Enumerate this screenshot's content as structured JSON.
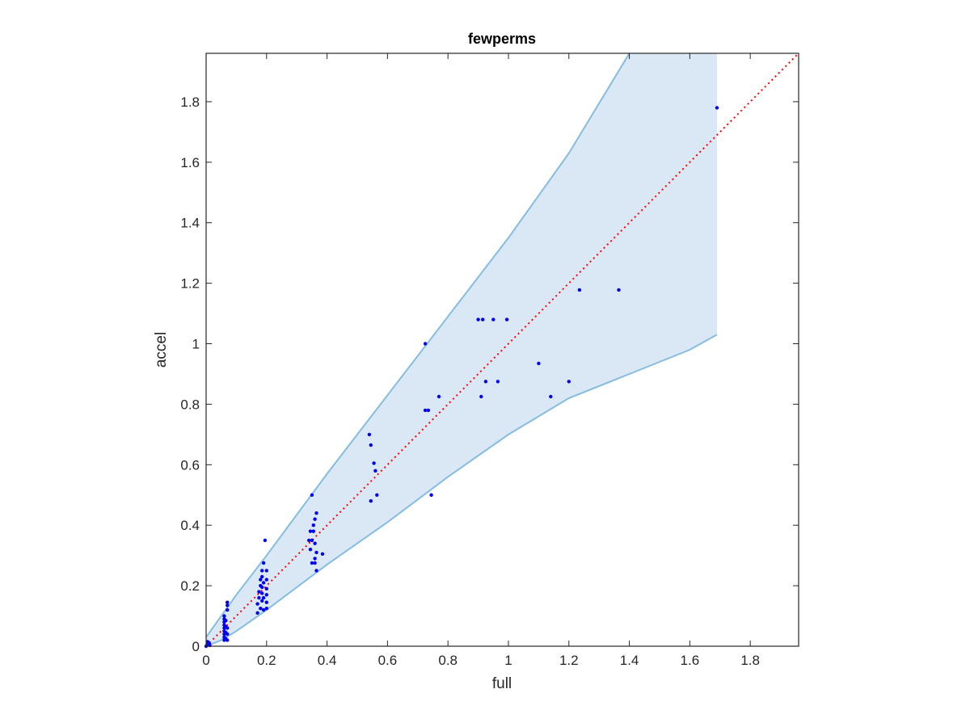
{
  "chart_data": {
    "type": "scatter",
    "title": "fewperms",
    "xlabel": "full",
    "ylabel": "accel",
    "xlim": [
      0,
      1.96
    ],
    "ylim": [
      0,
      1.96
    ],
    "xticks": [
      "0",
      "0.2",
      "0.4",
      "0.6",
      "0.8",
      "1",
      "1.2",
      "1.4",
      "1.6",
      "1.8"
    ],
    "yticks": [
      "0",
      "0.2",
      "0.4",
      "0.6",
      "0.8",
      "1",
      "1.2",
      "1.4",
      "1.6",
      "1.8"
    ],
    "grid": false,
    "colors": {
      "points": "#0000ee",
      "reference_line": "#ff0000",
      "band_fill": "#d9e8f4",
      "band_edge": "#85bce0",
      "axes": "#262626"
    },
    "band": {
      "upper": [
        [
          0,
          0.03
        ],
        [
          0.05,
          0.1
        ],
        [
          0.1,
          0.17
        ],
        [
          0.2,
          0.3
        ],
        [
          0.4,
          0.57
        ],
        [
          0.6,
          0.83
        ],
        [
          0.8,
          1.09
        ],
        [
          1.0,
          1.35
        ],
        [
          1.2,
          1.63
        ],
        [
          1.4,
          1.96
        ]
      ],
      "lower": [
        [
          0,
          0
        ],
        [
          0.05,
          0.02
        ],
        [
          0.1,
          0.05
        ],
        [
          0.2,
          0.12
        ],
        [
          0.4,
          0.27
        ],
        [
          0.6,
          0.41
        ],
        [
          0.8,
          0.56
        ],
        [
          1.0,
          0.7
        ],
        [
          1.2,
          0.82
        ],
        [
          1.4,
          0.9
        ],
        [
          1.6,
          0.98
        ],
        [
          1.69,
          1.03
        ]
      ],
      "right_edge_x": 1.69
    },
    "reference_line": [
      [
        0,
        0
      ],
      [
        1.96,
        1.96
      ]
    ],
    "points": [
      [
        0.0,
        0.0
      ],
      [
        0.005,
        0.005
      ],
      [
        0.01,
        0.01
      ],
      [
        0.005,
        0.015
      ],
      [
        0.012,
        0.003
      ],
      [
        0.008,
        0.008
      ],
      [
        0.06,
        0.02
      ],
      [
        0.06,
        0.03
      ],
      [
        0.06,
        0.04
      ],
      [
        0.06,
        0.05
      ],
      [
        0.06,
        0.06
      ],
      [
        0.06,
        0.07
      ],
      [
        0.06,
        0.08
      ],
      [
        0.06,
        0.09
      ],
      [
        0.06,
        0.1
      ],
      [
        0.065,
        0.025
      ],
      [
        0.065,
        0.045
      ],
      [
        0.065,
        0.065
      ],
      [
        0.065,
        0.085
      ],
      [
        0.07,
        0.02
      ],
      [
        0.07,
        0.04
      ],
      [
        0.07,
        0.06
      ],
      [
        0.07,
        0.12
      ],
      [
        0.07,
        0.135
      ],
      [
        0.07,
        0.145
      ],
      [
        0.17,
        0.11
      ],
      [
        0.17,
        0.14
      ],
      [
        0.175,
        0.16
      ],
      [
        0.175,
        0.18
      ],
      [
        0.18,
        0.125
      ],
      [
        0.18,
        0.2
      ],
      [
        0.18,
        0.22
      ],
      [
        0.185,
        0.15
      ],
      [
        0.185,
        0.175
      ],
      [
        0.185,
        0.195
      ],
      [
        0.185,
        0.23
      ],
      [
        0.185,
        0.25
      ],
      [
        0.19,
        0.12
      ],
      [
        0.19,
        0.16
      ],
      [
        0.19,
        0.21
      ],
      [
        0.19,
        0.275
      ],
      [
        0.195,
        0.35
      ],
      [
        0.2,
        0.125
      ],
      [
        0.2,
        0.145
      ],
      [
        0.2,
        0.17
      ],
      [
        0.2,
        0.19
      ],
      [
        0.2,
        0.22
      ],
      [
        0.2,
        0.25
      ],
      [
        0.34,
        0.35
      ],
      [
        0.345,
        0.38
      ],
      [
        0.345,
        0.32
      ],
      [
        0.35,
        0.275
      ],
      [
        0.35,
        0.35
      ],
      [
        0.35,
        0.5
      ],
      [
        0.355,
        0.38
      ],
      [
        0.355,
        0.4
      ],
      [
        0.36,
        0.275
      ],
      [
        0.36,
        0.29
      ],
      [
        0.36,
        0.34
      ],
      [
        0.36,
        0.42
      ],
      [
        0.365,
        0.31
      ],
      [
        0.365,
        0.44
      ],
      [
        0.365,
        0.25
      ],
      [
        0.385,
        0.305
      ],
      [
        0.54,
        0.7
      ],
      [
        0.545,
        0.665
      ],
      [
        0.545,
        0.48
      ],
      [
        0.555,
        0.605
      ],
      [
        0.56,
        0.58
      ],
      [
        0.565,
        0.5
      ],
      [
        0.725,
        1.0
      ],
      [
        0.725,
        0.78
      ],
      [
        0.735,
        0.78
      ],
      [
        0.745,
        0.5
      ],
      [
        0.77,
        0.825
      ],
      [
        0.9,
        1.08
      ],
      [
        0.91,
        0.825
      ],
      [
        0.915,
        1.08
      ],
      [
        0.925,
        0.875
      ],
      [
        0.95,
        1.08
      ],
      [
        0.965,
        0.875
      ],
      [
        0.995,
        1.08
      ],
      [
        1.1,
        0.935
      ],
      [
        1.14,
        0.825
      ],
      [
        1.2,
        0.875
      ],
      [
        1.235,
        1.178
      ],
      [
        1.365,
        1.178
      ],
      [
        1.69,
        1.78
      ]
    ]
  }
}
